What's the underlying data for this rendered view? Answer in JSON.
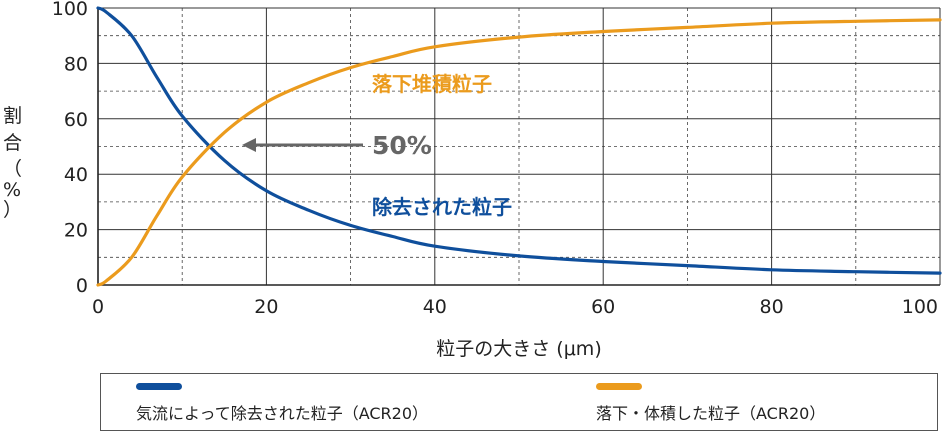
{
  "chart_data": {
    "type": "line",
    "xlabel": "粒子の大きさ (μm)",
    "ylabel": "割合（%）",
    "ylabel_chars": [
      "割",
      "合",
      "（",
      "%",
      "）"
    ],
    "xlim": [
      0,
      100
    ],
    "ylim": [
      0,
      100
    ],
    "x_ticks": [
      0,
      20,
      40,
      60,
      80,
      100
    ],
    "y_ticks": [
      0,
      20,
      40,
      60,
      80,
      100
    ],
    "x_ticks_label": [
      "0",
      "20",
      "40",
      "60",
      "80",
      "100"
    ],
    "y_ticks_label": [
      "0",
      "20",
      "40",
      "60",
      "80",
      "100"
    ],
    "grid": "major solid, minor dashed",
    "legend_position": "bottom",
    "series": [
      {
        "name": "気流によって除去された粒子（ACR20）",
        "color": "#0f4f9c",
        "x": [
          0,
          1,
          4,
          7,
          10,
          15,
          20,
          25,
          30,
          35,
          40,
          50,
          60,
          70,
          80,
          90,
          100
        ],
        "y": [
          100,
          98.5,
          90,
          75,
          61,
          45,
          34,
          27,
          21.5,
          17.5,
          14,
          10.5,
          8.5,
          7,
          5.5,
          4.8,
          4.3
        ]
      },
      {
        "name": "落下・体積した粒子（ACR20）",
        "color": "#eb9b1d",
        "x": [
          0,
          1,
          4,
          7,
          10,
          15,
          20,
          25,
          30,
          35,
          40,
          50,
          60,
          70,
          80,
          90,
          100
        ],
        "y": [
          0,
          1.5,
          10,
          25,
          39,
          55,
          66,
          73,
          78.5,
          82.5,
          86,
          89.5,
          91.5,
          93,
          94.5,
          95.2,
          95.7
        ]
      }
    ],
    "annotations": [
      {
        "text": "落下堆積粒子",
        "color": "#eb9b1d"
      },
      {
        "text": "50%",
        "color": "#666666"
      },
      {
        "text": "除去された粒子",
        "color": "#0f4f9c"
      }
    ]
  },
  "legend": {
    "items": [
      {
        "label": "気流によって除去された粒子（ACR20）",
        "color": "#0f4f9c"
      },
      {
        "label": "落下・体積した粒子（ACR20）",
        "color": "#eb9b1d"
      }
    ]
  }
}
